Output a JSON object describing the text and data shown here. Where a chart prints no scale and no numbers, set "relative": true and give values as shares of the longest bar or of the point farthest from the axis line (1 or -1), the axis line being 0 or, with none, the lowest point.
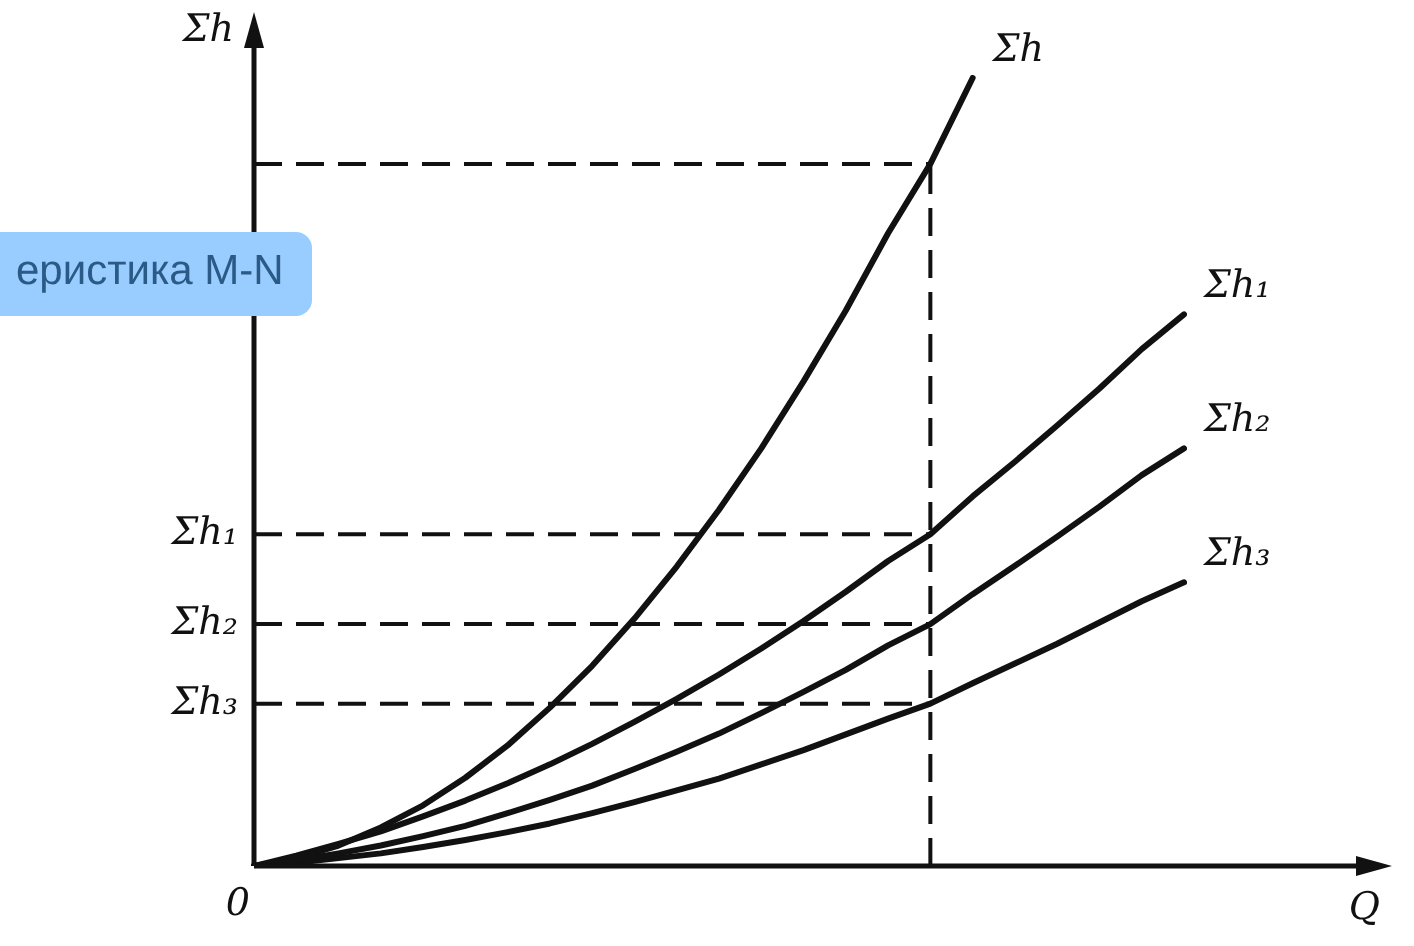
{
  "chart_data": {
    "type": "line",
    "relative": true,
    "ylabel": "Σh",
    "xlabel": "Q",
    "legend": false,
    "marker": "none",
    "line_style": "solid",
    "categories": [
      null,
      null,
      null,
      null,
      null,
      null,
      null,
      null,
      null,
      null,
      null,
      null,
      null,
      null,
      null,
      null,
      null,
      null,
      null,
      null,
      null,
      null,
      null
    ],
    "series": [
      {
        "name": "Σh",
        "color": "#111111",
        "values": [
          0,
          0.01,
          0.026,
          0.049,
          0.077,
          0.112,
          0.153,
          0.201,
          0.254,
          0.314,
          0.38,
          0.452,
          0.53,
          0.615,
          0.705,
          0.803,
          0.891,
          1,
          null,
          null,
          null,
          null,
          null
        ]
      },
      {
        "name": "Σh₁",
        "color": "#111111",
        "values": [
          0,
          0.013,
          0.028,
          0.044,
          0.063,
          0.083,
          0.105,
          0.129,
          0.155,
          0.183,
          0.212,
          0.243,
          0.276,
          0.311,
          0.348,
          0.387,
          0.421,
          0.469,
          0.513,
          0.559,
          0.606,
          0.656,
          0.7
        ]
      },
      {
        "name": "Σh₂",
        "color": "#111111",
        "values": [
          0,
          0.007,
          0.016,
          0.026,
          0.038,
          0.051,
          0.067,
          0.084,
          0.102,
          0.123,
          0.145,
          0.168,
          0.194,
          0.221,
          0.249,
          0.28,
          0.307,
          0.345,
          0.381,
          0.418,
          0.456,
          0.496,
          0.53
        ]
      },
      {
        "name": "Σh₃",
        "color": "#111111",
        "values": [
          0,
          0.004,
          0.01,
          0.016,
          0.024,
          0.033,
          0.043,
          0.054,
          0.067,
          0.081,
          0.096,
          0.111,
          0.129,
          0.147,
          0.167,
          0.187,
          0.206,
          0.232,
          0.257,
          0.282,
          0.309,
          0.336,
          0.36
        ]
      }
    ],
    "ref_lines": [
      {
        "axis": "y",
        "value": 0.891,
        "line_style": "dashed",
        "color": "#111111"
      },
      {
        "axis": "y",
        "value": 0.421,
        "label": "Σh₁",
        "line_style": "dashed",
        "color": "#111111"
      },
      {
        "axis": "y",
        "value": 0.307,
        "label": "Σh₂",
        "line_style": "dashed",
        "color": "#111111"
      },
      {
        "axis": "y",
        "value": 0.206,
        "label": "Σh₃",
        "line_style": "dashed",
        "color": "#111111"
      }
    ],
    "annotations": [
      "еристика M-N",
      "0"
    ]
  }
}
